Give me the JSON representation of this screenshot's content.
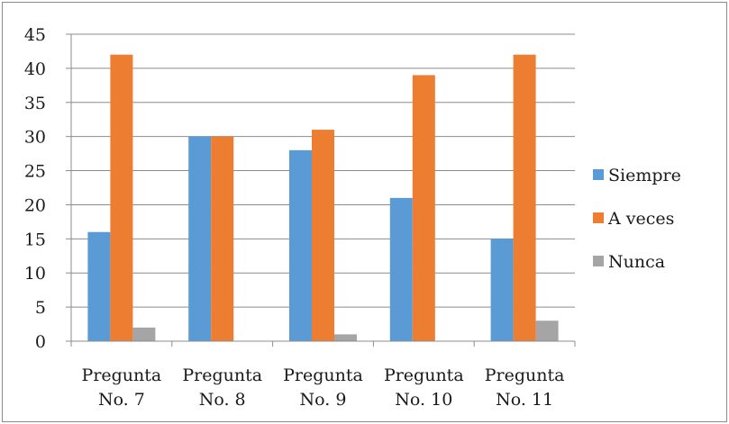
{
  "chart_data": {
    "type": "bar",
    "categories": [
      [
        "Pregunta",
        "No. 7"
      ],
      [
        "Pregunta",
        "No. 8"
      ],
      [
        "Pregunta",
        "No. 9"
      ],
      [
        "Pregunta",
        "No. 10"
      ],
      [
        "Pregunta",
        "No. 11"
      ]
    ],
    "series": [
      {
        "name": "Siempre",
        "color": "#5b9bd5",
        "values": [
          16,
          30,
          28,
          21,
          15
        ]
      },
      {
        "name": "A veces",
        "color": "#ed7d31",
        "values": [
          42,
          30,
          31,
          39,
          42
        ]
      },
      {
        "name": "Nunca",
        "color": "#a5a5a5",
        "values": [
          2,
          0,
          1,
          0,
          3
        ]
      }
    ],
    "ylim": [
      0,
      45
    ],
    "yticks": [
      0,
      5,
      10,
      15,
      20,
      25,
      30,
      35,
      40,
      45
    ],
    "grid": true,
    "legend": "right"
  }
}
